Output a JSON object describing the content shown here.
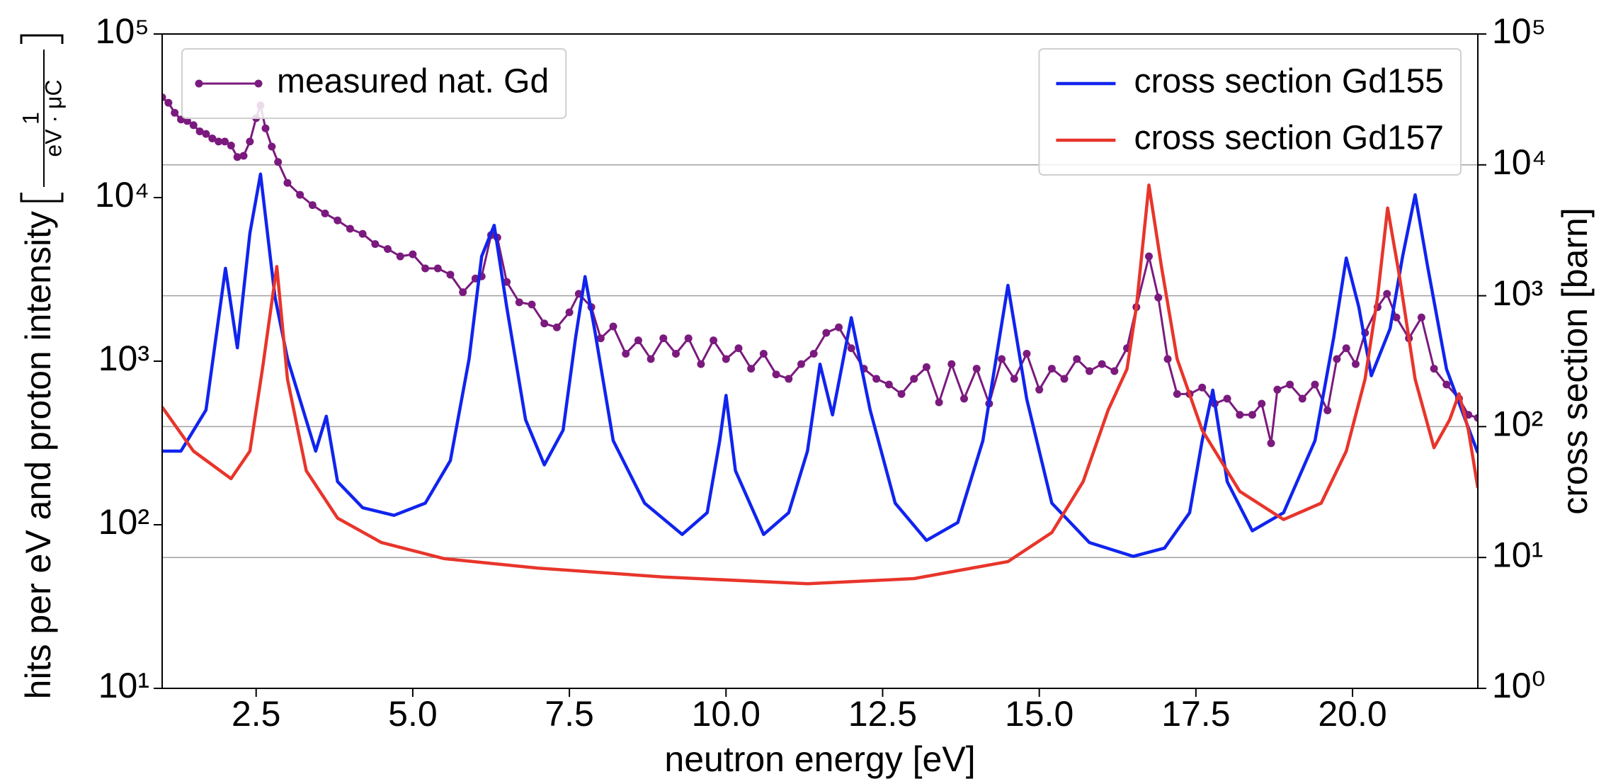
{
  "chart_data": {
    "type": "line",
    "xlabel": "neutron energy [eV]",
    "ylabel": "hits per eV and proton intensity",
    "ylabel_unit": {
      "numerator": "1",
      "denominator": "eV · μC"
    },
    "y2label": "cross section [barn]",
    "xlim": [
      1,
      22
    ],
    "xticks": [
      2.5,
      {
        "value": 5,
        "label": "5.0"
      },
      7.5,
      {
        "value": 10,
        "label": "10.0"
      },
      12.5,
      {
        "value": 15,
        "label": "15.0"
      },
      17.5,
      {
        "value": 20,
        "label": "20.0"
      }
    ],
    "ylim": [
      10,
      100000
    ],
    "ylog": true,
    "yticks": [
      {
        "value": 10,
        "label": "10¹"
      },
      {
        "value": 100,
        "label": "10²"
      },
      {
        "value": 1000,
        "label": "10³"
      },
      {
        "value": 10000,
        "label": "10⁴"
      },
      {
        "value": 100000,
        "label": "10⁵"
      }
    ],
    "y2lim": [
      1,
      100000
    ],
    "y2log": true,
    "y2ticks": [
      {
        "value": 1,
        "label": "10⁰"
      },
      {
        "value": 10,
        "label": "10¹"
      },
      {
        "value": 100,
        "label": "10²"
      },
      {
        "value": 1000,
        "label": "10³"
      },
      {
        "value": 10000,
        "label": "10⁴"
      },
      {
        "value": 100000,
        "label": "10⁵"
      }
    ],
    "grid": "y2",
    "legend": "upper left",
    "legend2": "upper right",
    "series": [
      {
        "name": "measured nat. Gd",
        "color": "#7b1a7e",
        "axis": "y",
        "marker": "o",
        "x": [
          1.0,
          1.1,
          1.2,
          1.3,
          1.4,
          1.5,
          1.6,
          1.7,
          1.8,
          1.9,
          2.0,
          2.1,
          2.2,
          2.3,
          2.4,
          2.5,
          2.57,
          2.65,
          2.75,
          2.85,
          3.0,
          3.2,
          3.4,
          3.6,
          3.8,
          4.0,
          4.2,
          4.4,
          4.6,
          4.8,
          5.0,
          5.2,
          5.4,
          5.6,
          5.8,
          6.0,
          6.1,
          6.25,
          6.35,
          6.5,
          6.7,
          6.9,
          7.1,
          7.3,
          7.5,
          7.65,
          7.85,
          8.0,
          8.2,
          8.4,
          8.6,
          8.8,
          9.0,
          9.2,
          9.4,
          9.6,
          9.8,
          10.0,
          10.2,
          10.4,
          10.6,
          10.8,
          11.0,
          11.2,
          11.4,
          11.6,
          11.8,
          12.0,
          12.2,
          12.4,
          12.6,
          12.8,
          13.0,
          13.2,
          13.4,
          13.6,
          13.8,
          14.0,
          14.2,
          14.4,
          14.6,
          14.8,
          15.0,
          15.2,
          15.4,
          15.6,
          15.8,
          16.0,
          16.2,
          16.4,
          16.55,
          16.75,
          16.9,
          17.05,
          17.2,
          17.4,
          17.6,
          17.8,
          18.0,
          18.2,
          18.4,
          18.55,
          18.7,
          18.8,
          19.0,
          19.2,
          19.4,
          19.6,
          19.75,
          19.9,
          20.05,
          20.2,
          20.4,
          20.55,
          20.7,
          20.9,
          21.1,
          21.3,
          21.5,
          21.7,
          21.85,
          22.0
        ],
        "values": [
          41000,
          38000,
          33000,
          30000,
          29400,
          27700,
          25400,
          24500,
          23000,
          22000,
          22000,
          20800,
          17700,
          18000,
          22000,
          30600,
          36600,
          26500,
          20500,
          16500,
          12300,
          10400,
          9000,
          8000,
          7250,
          6450,
          6000,
          5200,
          4850,
          4370,
          4500,
          3690,
          3690,
          3380,
          2640,
          3200,
          3300,
          5900,
          5700,
          3050,
          2290,
          2220,
          1700,
          1610,
          1990,
          2580,
          2140,
          1380,
          1630,
          1110,
          1340,
          1030,
          1380,
          1110,
          1380,
          960,
          1340,
          1030,
          1200,
          900,
          1110,
          830,
          780,
          960,
          1110,
          1490,
          1610,
          1200,
          900,
          780,
          720,
          630,
          780,
          920,
          560,
          960,
          590,
          900,
          550,
          1030,
          780,
          1110,
          670,
          900,
          780,
          1030,
          870,
          960,
          870,
          1200,
          2140,
          4370,
          2450,
          1030,
          630,
          630,
          690,
          550,
          590,
          470,
          470,
          550,
          315,
          670,
          720,
          590,
          720,
          500,
          1030,
          1200,
          960,
          1490,
          2140,
          2580,
          1850,
          1380,
          1850,
          900,
          720,
          590,
          470,
          450
        ]
      },
      {
        "name": "cross section Gd155",
        "color": "#1024ee",
        "axis": "y2",
        "x": [
          1.0,
          1.3,
          1.7,
          2.01,
          2.2,
          2.4,
          2.57,
          2.8,
          3.0,
          3.45,
          3.62,
          3.8,
          4.2,
          4.7,
          5.2,
          5.6,
          5.9,
          6.1,
          6.3,
          6.5,
          6.8,
          7.1,
          7.4,
          7.6,
          7.75,
          7.9,
          8.2,
          8.7,
          9.3,
          9.7,
          9.9,
          10.0,
          10.15,
          10.6,
          11.0,
          11.3,
          11.5,
          11.7,
          12.0,
          12.3,
          12.7,
          13.2,
          13.7,
          14.1,
          14.5,
          14.8,
          15.2,
          15.8,
          16.5,
          17.0,
          17.4,
          17.6,
          17.77,
          18.0,
          18.4,
          18.9,
          19.4,
          19.7,
          19.9,
          20.1,
          20.3,
          20.6,
          20.8,
          21.0,
          21.2,
          21.5,
          21.8,
          22.0
        ],
        "values": [
          65,
          65,
          134,
          1620,
          400,
          3000,
          8500,
          980,
          330,
          65,
          120,
          38,
          24,
          21,
          26,
          55,
          330,
          2000,
          3450,
          820,
          113,
          51,
          94,
          480,
          1400,
          560,
          78,
          26,
          15,
          22,
          78,
          173,
          46,
          15,
          22,
          65,
          300,
          123,
          680,
          134,
          26,
          13.5,
          18.5,
          78,
          1200,
          162,
          26,
          13,
          10.2,
          11.8,
          22,
          78,
          190,
          38,
          16,
          22,
          78,
          480,
          1940,
          820,
          245,
          560,
          2000,
          5900,
          1660,
          275,
          113,
          63
        ]
      },
      {
        "name": "cross section Gd157",
        "color": "#e8352b",
        "axis": "y2",
        "x": [
          1.0,
          1.5,
          2.1,
          2.4,
          2.6,
          2.83,
          3.0,
          3.3,
          3.8,
          4.5,
          5.5,
          7.0,
          9.0,
          11.3,
          13.0,
          14.5,
          15.2,
          15.7,
          16.1,
          16.4,
          16.55,
          16.75,
          16.95,
          17.2,
          17.6,
          18.2,
          18.9,
          19.5,
          19.9,
          20.2,
          20.4,
          20.56,
          20.75,
          21.0,
          21.3,
          21.55,
          21.7,
          21.85,
          22.0
        ],
        "values": [
          141,
          65,
          40,
          65,
          275,
          1670,
          230,
          46,
          20,
          13,
          9.8,
          8.3,
          7.1,
          6.3,
          6.9,
          9.3,
          15.5,
          38,
          134,
          275,
          820,
          7000,
          1670,
          330,
          94,
          32,
          19.5,
          26,
          65,
          230,
          980,
          4680,
          1400,
          230,
          69,
          113,
          178,
          94,
          34
        ]
      }
    ]
  }
}
